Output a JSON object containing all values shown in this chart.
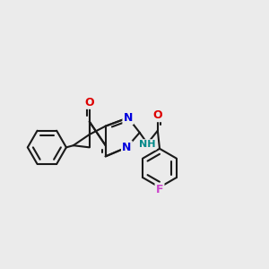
{
  "background_color": "#ebebeb",
  "bond_color": "#1a1a1a",
  "N_color": "#0000dd",
  "O_color": "#dd0000",
  "F_color": "#cc44cc",
  "NH_color": "#008888",
  "lw": 1.5,
  "figsize": [
    3.0,
    3.0
  ],
  "dpi": 100,
  "xlim": [
    -1.8,
    2.8
  ],
  "ylim": [
    -1.7,
    1.7
  ]
}
